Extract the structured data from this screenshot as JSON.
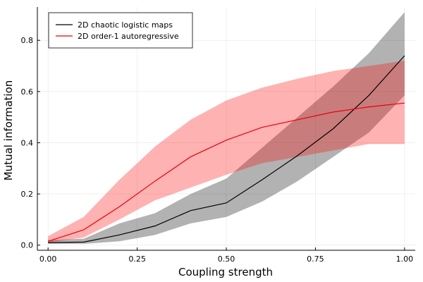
{
  "chart_data": {
    "type": "line",
    "xlabel": "Coupling strength",
    "ylabel": "Mutual information",
    "xlim": [
      -0.03,
      1.03
    ],
    "ylim": [
      -0.02,
      0.93
    ],
    "xticks": [
      0.0,
      0.25,
      0.5,
      0.75,
      1.0
    ],
    "xtick_labels": [
      "0.00",
      "0.25",
      "0.50",
      "0.75",
      "1.00"
    ],
    "yticks": [
      0.0,
      0.2,
      0.4,
      0.6,
      0.8
    ],
    "ytick_labels": [
      "0.0",
      "0.2",
      "0.4",
      "0.6",
      "0.8"
    ],
    "grid": true,
    "legend_position": "top-left",
    "x": [
      0.0,
      0.1,
      0.2,
      0.3,
      0.4,
      0.5,
      0.6,
      0.7,
      0.8,
      0.9,
      1.0
    ],
    "series": [
      {
        "name": "2D chaotic logistic maps",
        "color": "#000000",
        "band_color": "#000000",
        "values": [
          0.01,
          0.012,
          0.04,
          0.075,
          0.135,
          0.165,
          0.255,
          0.35,
          0.455,
          0.585,
          0.74
        ],
        "lower": [
          0.005,
          0.005,
          0.015,
          0.04,
          0.085,
          0.11,
          0.17,
          0.25,
          0.345,
          0.44,
          0.585
        ],
        "upper": [
          0.02,
          0.025,
          0.085,
          0.125,
          0.2,
          0.26,
          0.38,
          0.5,
          0.62,
          0.75,
          0.91
        ]
      },
      {
        "name": "2D order-1 autoregressive",
        "color": "#e8000b",
        "band_color": "#ff0000",
        "values": [
          0.015,
          0.06,
          0.15,
          0.25,
          0.345,
          0.41,
          0.46,
          0.49,
          0.52,
          0.54,
          0.555
        ],
        "lower": [
          0.01,
          0.03,
          0.1,
          0.175,
          0.225,
          0.275,
          0.32,
          0.345,
          0.37,
          0.395,
          0.395
        ],
        "upper": [
          0.035,
          0.11,
          0.255,
          0.385,
          0.49,
          0.565,
          0.615,
          0.65,
          0.68,
          0.7,
          0.72
        ]
      }
    ]
  }
}
